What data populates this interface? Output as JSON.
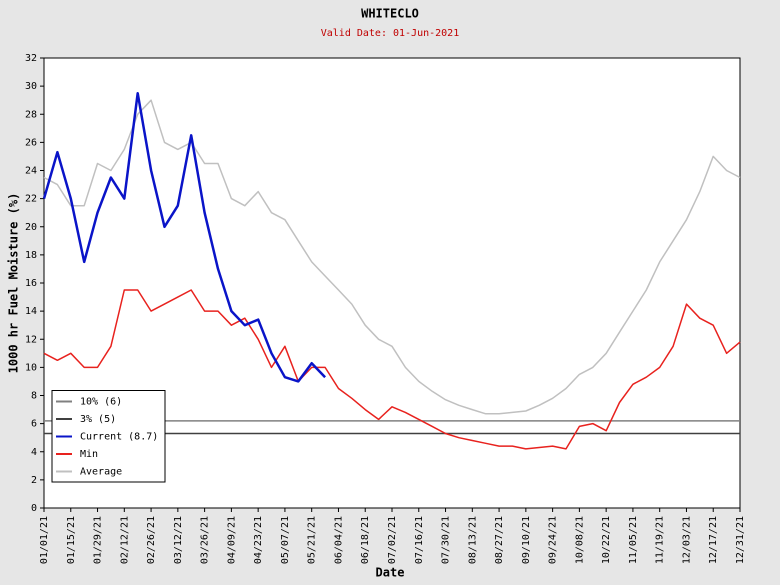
{
  "chart_data": {
    "type": "line",
    "title": "WHITECLO",
    "subtitle": "Valid Date: 01-Jun-2021",
    "y_label": "1000 hr Fuel Moisture (%)",
    "x_label": "Date",
    "x": [
      "01/01/21",
      "01/08/21",
      "01/15/21",
      "01/22/21",
      "01/29/21",
      "02/05/21",
      "02/12/21",
      "02/19/21",
      "02/26/21",
      "03/05/21",
      "03/12/21",
      "03/19/21",
      "03/26/21",
      "04/02/21",
      "04/09/21",
      "04/16/21",
      "04/23/21",
      "04/30/21",
      "05/07/21",
      "05/14/21",
      "05/21/21",
      "05/28/21",
      "06/04/21",
      "06/11/21",
      "06/18/21",
      "06/25/21",
      "07/02/21",
      "07/09/21",
      "07/16/21",
      "07/23/21",
      "07/30/21",
      "08/06/21",
      "08/13/21",
      "08/20/21",
      "08/27/21",
      "09/03/21",
      "09/10/21",
      "09/17/21",
      "09/24/21",
      "10/01/21",
      "10/08/21",
      "10/15/21",
      "10/22/21",
      "10/29/21",
      "11/05/21",
      "11/12/21",
      "11/19/21",
      "11/26/21",
      "12/03/21",
      "12/10/21",
      "12/17/21",
      "12/24/21",
      "12/31/21"
    ],
    "series": [
      {
        "name": "Average",
        "color": "#c0c0c0",
        "values": [
          23.5,
          23,
          21.5,
          21.5,
          24.5,
          24,
          25.5,
          28,
          29,
          26,
          25.5,
          26,
          24.5,
          24.5,
          22,
          21.5,
          22.5,
          21,
          20.5,
          19,
          17.5,
          16.5,
          15.5,
          14.5,
          13,
          12,
          11.5,
          10,
          9,
          8.3,
          7.7,
          7.3,
          7,
          6.7,
          6.7,
          6.8,
          6.9,
          7.3,
          7.8,
          8.5,
          9.5,
          10,
          11,
          12.5,
          14,
          15.5,
          17.5,
          19,
          20.5,
          22.5,
          25,
          24,
          23.5
        ]
      },
      {
        "name": "Min",
        "color": "#e8221e",
        "values": [
          11,
          10.5,
          11,
          10,
          10,
          11.5,
          15.5,
          15.5,
          14,
          14.5,
          15,
          15.5,
          14,
          14,
          13,
          13.5,
          12,
          10,
          11.5,
          9,
          10,
          10,
          8.5,
          7.8,
          7,
          6.3,
          7.2,
          6.8,
          6.3,
          5.8,
          5.3,
          5,
          4.8,
          4.6,
          4.4,
          4.4,
          4.2,
          4.3,
          4.4,
          4.2,
          5.8,
          6,
          5.5,
          7.5,
          8.8,
          9.3,
          10,
          11.5,
          14.5,
          13.5,
          13,
          11,
          11.8
        ]
      },
      {
        "name": "Current (8.7)",
        "color": "#0a14c8",
        "values": [
          22,
          25.3,
          22,
          17.5,
          21,
          23.5,
          22,
          29.5,
          24,
          20,
          21.5,
          26.5,
          21,
          17,
          14,
          13,
          13.4,
          11,
          9.3,
          9,
          10.3,
          9.3,
          null,
          null,
          null,
          null,
          null,
          null,
          null,
          null,
          null,
          null,
          null,
          null,
          null,
          null,
          null,
          null,
          null,
          null,
          null,
          null,
          null,
          null,
          null,
          null,
          null,
          null,
          null,
          null,
          null,
          null,
          null
        ]
      }
    ],
    "reference_lines": [
      {
        "name": "10% (6)",
        "value": 6.2,
        "color": "#808080"
      },
      {
        "name": "3% (5)",
        "value": 5.3,
        "color": "#404040"
      }
    ],
    "legend_order": [
      "10% (6)",
      "3% (5)",
      "Current (8.7)",
      "Min",
      "Average"
    ],
    "legend": "lower left",
    "xlim": [
      "01/01/21",
      "12/31/21"
    ],
    "xticks": [
      "01/01/21",
      "01/15/21",
      "01/29/21",
      "02/12/21",
      "02/26/21",
      "03/12/21",
      "03/26/21",
      "04/09/21",
      "04/23/21",
      "05/07/21",
      "05/21/21",
      "06/04/21",
      "06/18/21",
      "07/02/21",
      "07/16/21",
      "07/30/21",
      "08/13/21",
      "08/27/21",
      "09/10/21",
      "09/24/21",
      "10/08/21",
      "10/22/21",
      "11/05/21",
      "11/19/21",
      "12/03/21",
      "12/17/21",
      "12/31/21"
    ],
    "ylim": [
      0,
      32
    ],
    "yticks": [
      0,
      2,
      4,
      6,
      8,
      10,
      12,
      14,
      16,
      18,
      20,
      22,
      24,
      26,
      28,
      30,
      32
    ]
  }
}
